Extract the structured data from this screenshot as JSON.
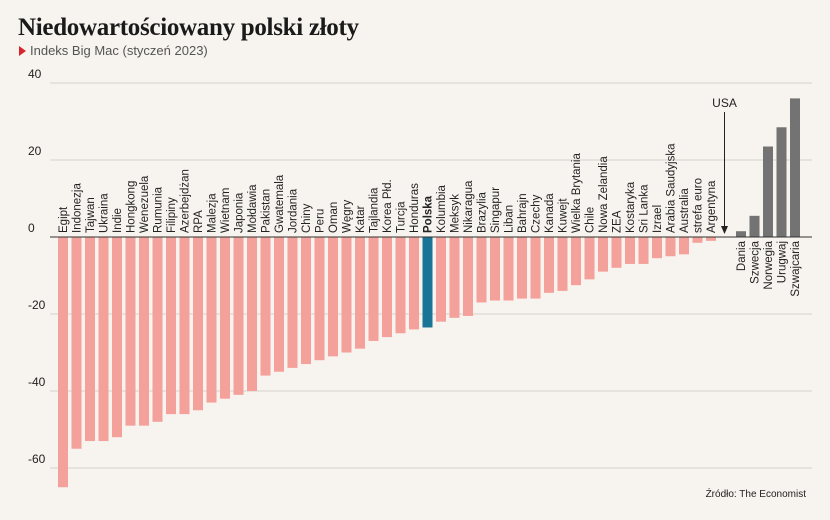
{
  "title": "Niedowartościowany polski złoty",
  "subtitle": "Indeks Big Mac (styczeń 2023)",
  "source": "Źródło: The Economist",
  "colors": {
    "undervalued": "#f4a19b",
    "poland": "#197495",
    "overvalued": "#737373",
    "grid": "#d6d2cc",
    "axis": "#333333"
  },
  "chart_data": {
    "type": "bar",
    "ylim": [
      -65,
      42
    ],
    "yticks": [
      40,
      20,
      0,
      -20,
      -40,
      -60
    ],
    "ytick_labels": [
      "40",
      "20",
      "0",
      "-20",
      "-40",
      "-60"
    ],
    "grid": true,
    "highlight": "Polska",
    "annotation": {
      "label": "USA",
      "value": 0
    },
    "categories": [
      "Egipt",
      "Indonezja",
      "Tajwan",
      "Ukraina",
      "Indie",
      "Hongkong",
      "Wenezuela",
      "Rumunia",
      "Filipiny",
      "Azerbejdżan",
      "RPA",
      "Malezja",
      "Wietnam",
      "Japonia",
      "Mołdawia",
      "Pakistan",
      "Gwatemala",
      "Jordania",
      "Chiny",
      "Peru",
      "Oman",
      "Węgry",
      "Katar",
      "Tajlandia",
      "Korea Płd.",
      "Turcja",
      "Honduras",
      "Polska",
      "Kolumbia",
      "Meksyk",
      "Nikaragua",
      "Brazylia",
      "Singapur",
      "Liban",
      "Bahrajn",
      "Czechy",
      "Kanada",
      "Kuwejt",
      "Wielka Brytania",
      "Chile",
      "Nowa Zelandia",
      "ZEA",
      "Kostaryka",
      "Sri Lanka",
      "Izrael",
      "Arabia Saudyjska",
      "Australia",
      "strefa euro",
      "Argentyna",
      "USA",
      "Dania",
      "Szwecja",
      "Norwegia",
      "Urugwaj",
      "Szwajcaria"
    ],
    "values": [
      -65,
      -55,
      -53,
      -53,
      -52,
      -49,
      -49,
      -48,
      -46,
      -46,
      -45,
      -43,
      -42,
      -41,
      -40,
      -36,
      -35,
      -34,
      -33,
      -32,
      -31,
      -30,
      -29,
      -27,
      -26,
      -25,
      -24,
      -23.5,
      -22,
      -21,
      -20.5,
      -17,
      -16.5,
      -16.5,
      -16,
      -16,
      -14.5,
      -14,
      -12.5,
      -11,
      -9,
      -8,
      -7,
      -7,
      -5.5,
      -5,
      -4.5,
      -1.5,
      -1,
      0,
      1.5,
      5.5,
      23.5,
      28.5,
      36
    ]
  }
}
